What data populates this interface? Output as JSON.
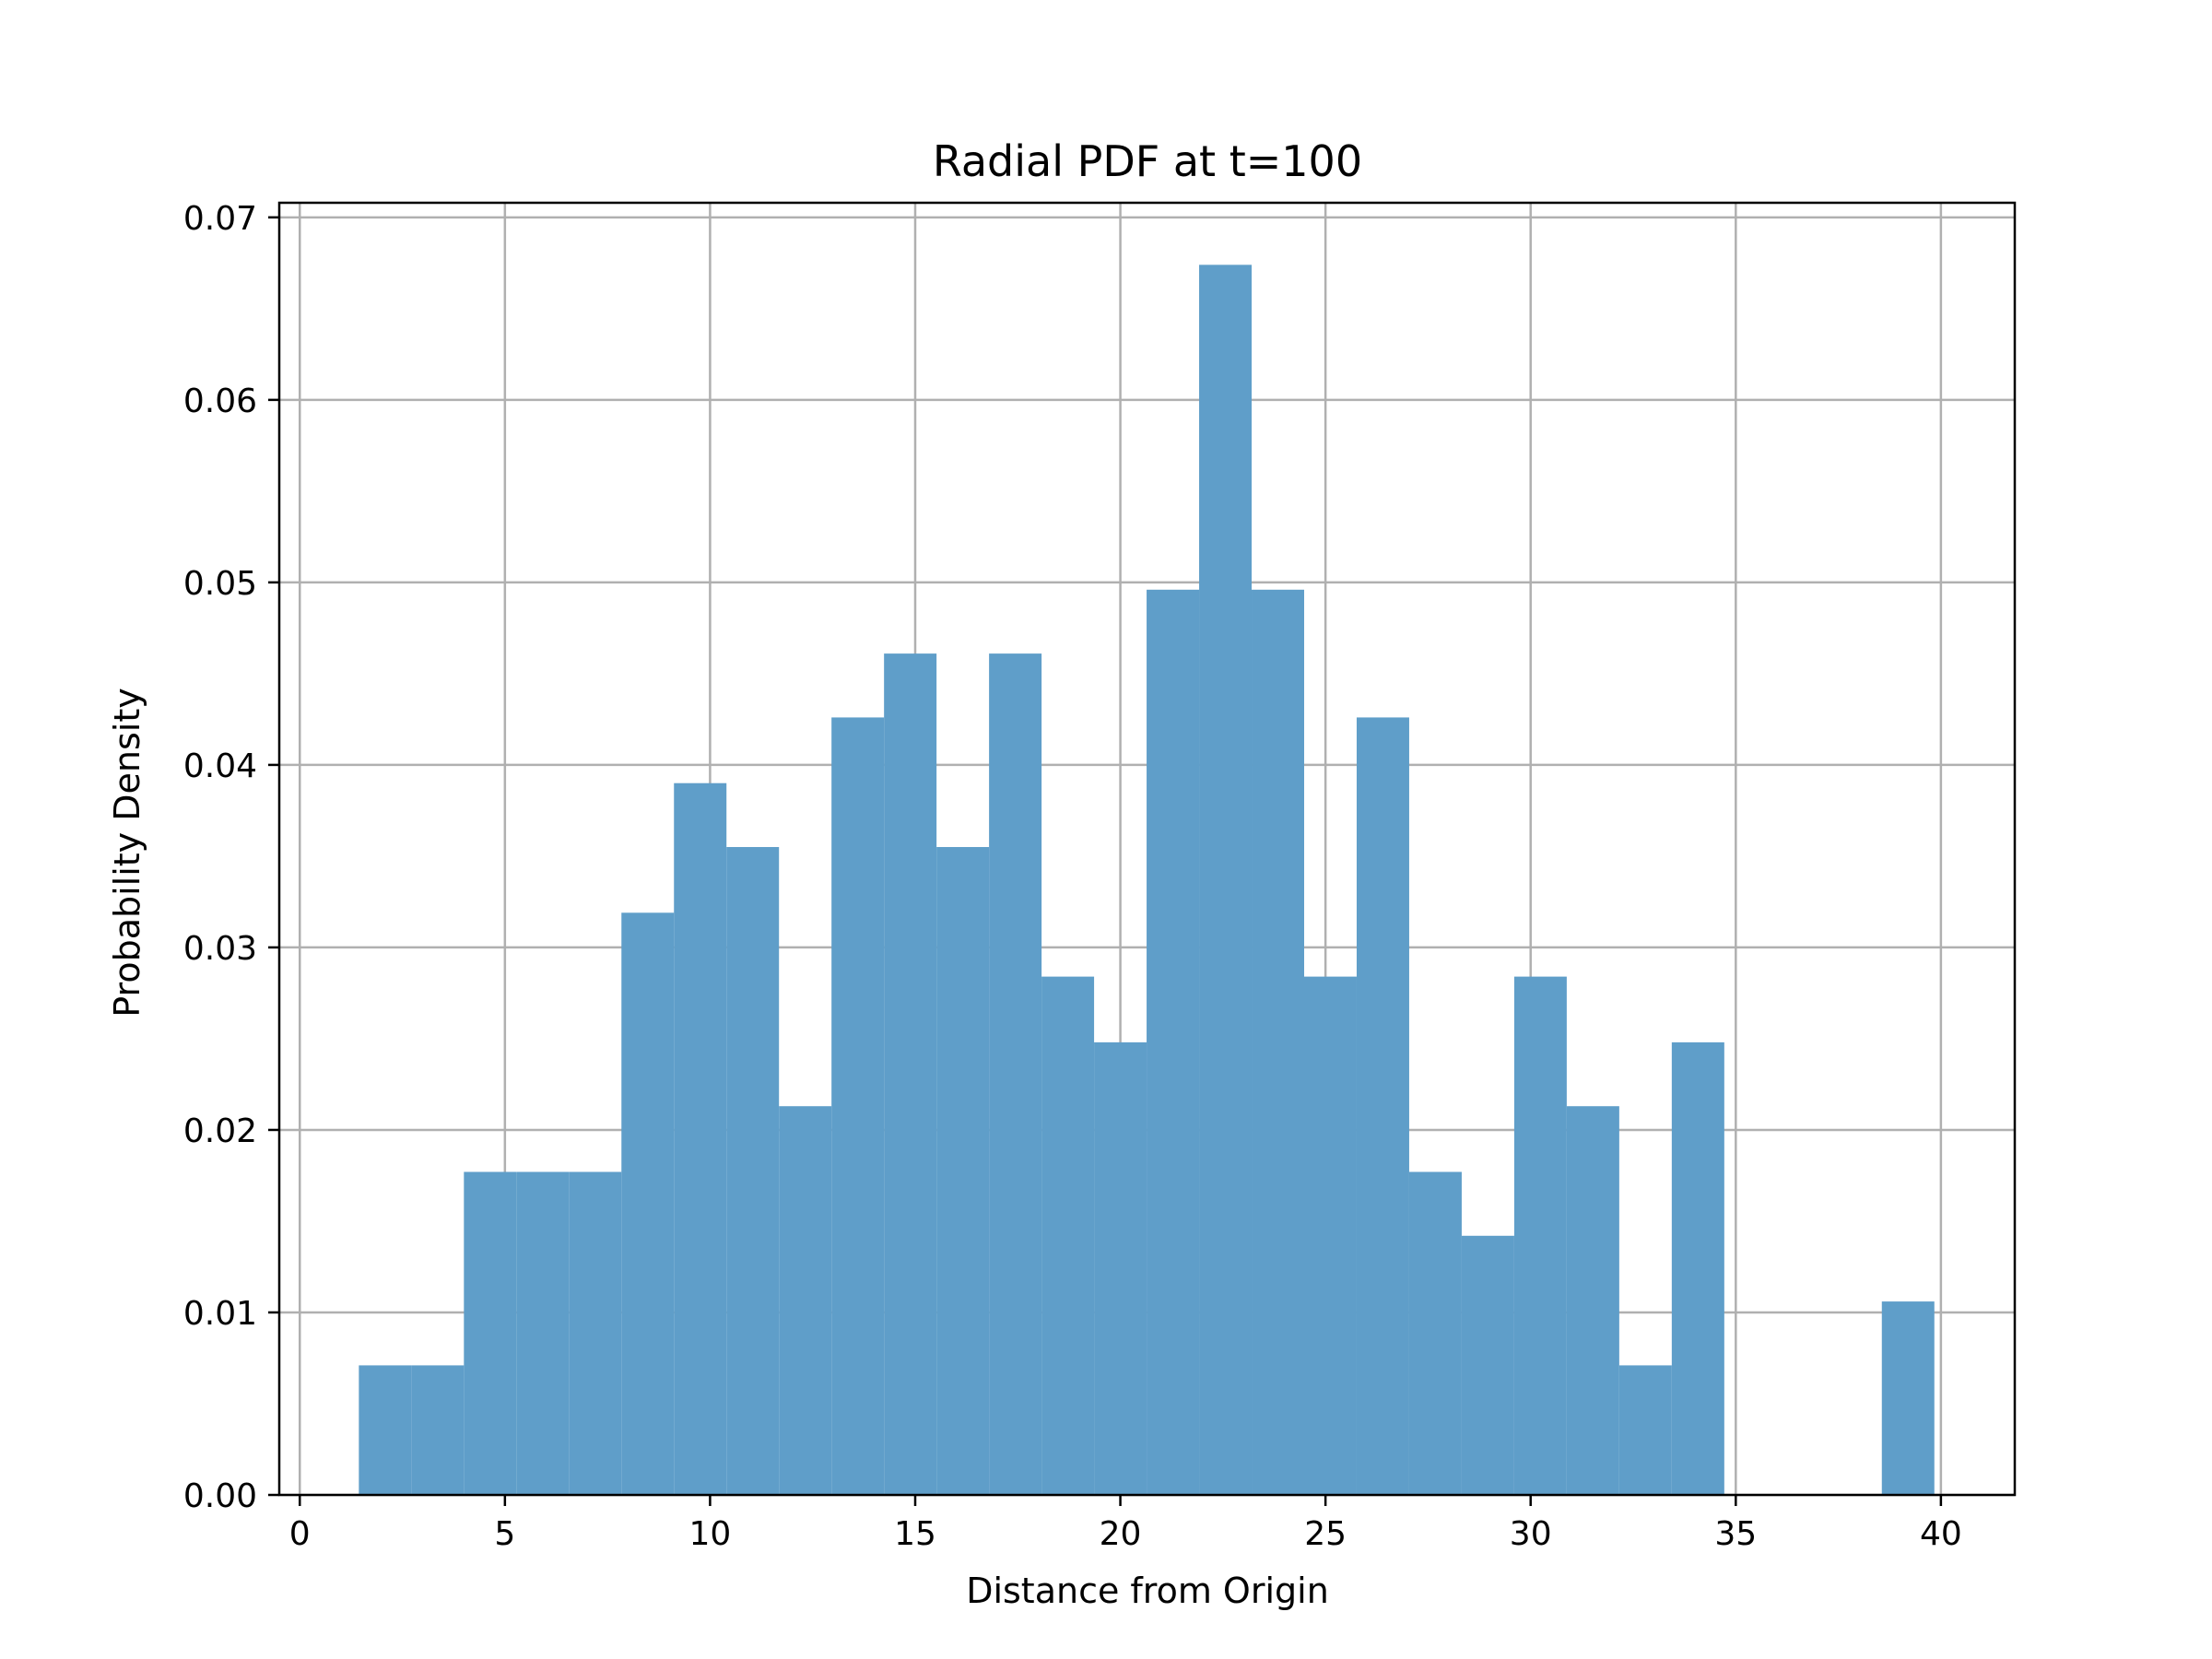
{
  "chart_data": {
    "type": "bar",
    "subtype": "histogram",
    "title": "Radial PDF at t=100",
    "xlabel": "Distance from Origin",
    "ylabel": "Probability Density",
    "xlim": [
      -0.5,
      41.8
    ],
    "ylim": [
      0,
      0.0708
    ],
    "xticks": [
      0,
      5,
      10,
      15,
      20,
      25,
      30,
      35,
      40
    ],
    "yticks": [
      0.0,
      0.01,
      0.02,
      0.03,
      0.04,
      0.05,
      0.06,
      0.07
    ],
    "ytick_labels": [
      "0.00",
      "0.01",
      "0.02",
      "0.03",
      "0.04",
      "0.05",
      "0.06",
      "0.07"
    ],
    "grid": true,
    "bar_color": "#5f9ec9",
    "bins": [
      {
        "x0": 1.44,
        "x1": 2.72,
        "value": 0.0071
      },
      {
        "x0": 2.72,
        "x1": 4.0,
        "value": 0.0071
      },
      {
        "x0": 4.0,
        "x1": 5.28,
        "value": 0.0177
      },
      {
        "x0": 5.28,
        "x1": 6.56,
        "value": 0.0177
      },
      {
        "x0": 6.56,
        "x1": 7.84,
        "value": 0.0177
      },
      {
        "x0": 7.84,
        "x1": 9.12,
        "value": 0.0319
      },
      {
        "x0": 9.12,
        "x1": 10.4,
        "value": 0.039
      },
      {
        "x0": 10.4,
        "x1": 11.68,
        "value": 0.0355
      },
      {
        "x0": 11.68,
        "x1": 12.96,
        "value": 0.0213
      },
      {
        "x0": 12.96,
        "x1": 14.24,
        "value": 0.0426
      },
      {
        "x0": 14.24,
        "x1": 15.52,
        "value": 0.0461
      },
      {
        "x0": 15.52,
        "x1": 16.8,
        "value": 0.0355
      },
      {
        "x0": 16.8,
        "x1": 18.08,
        "value": 0.0461
      },
      {
        "x0": 18.08,
        "x1": 19.36,
        "value": 0.0284
      },
      {
        "x0": 19.36,
        "x1": 20.64,
        "value": 0.0248
      },
      {
        "x0": 20.64,
        "x1": 21.92,
        "value": 0.0496
      },
      {
        "x0": 21.92,
        "x1": 23.2,
        "value": 0.0674
      },
      {
        "x0": 23.2,
        "x1": 24.48,
        "value": 0.0496
      },
      {
        "x0": 24.48,
        "x1": 25.76,
        "value": 0.0284
      },
      {
        "x0": 25.76,
        "x1": 27.04,
        "value": 0.0426
      },
      {
        "x0": 27.04,
        "x1": 28.32,
        "value": 0.0177
      },
      {
        "x0": 28.32,
        "x1": 29.6,
        "value": 0.0142
      },
      {
        "x0": 29.6,
        "x1": 30.88,
        "value": 0.0284
      },
      {
        "x0": 30.88,
        "x1": 32.16,
        "value": 0.0213
      },
      {
        "x0": 32.16,
        "x1": 33.44,
        "value": 0.0071
      },
      {
        "x0": 33.44,
        "x1": 34.72,
        "value": 0.0248
      },
      {
        "x0": 34.72,
        "x1": 36.0,
        "value": 0
      },
      {
        "x0": 36.0,
        "x1": 37.28,
        "value": 0
      },
      {
        "x0": 37.28,
        "x1": 38.56,
        "value": 0
      },
      {
        "x0": 38.56,
        "x1": 39.84,
        "value": 0.0106
      }
    ]
  }
}
